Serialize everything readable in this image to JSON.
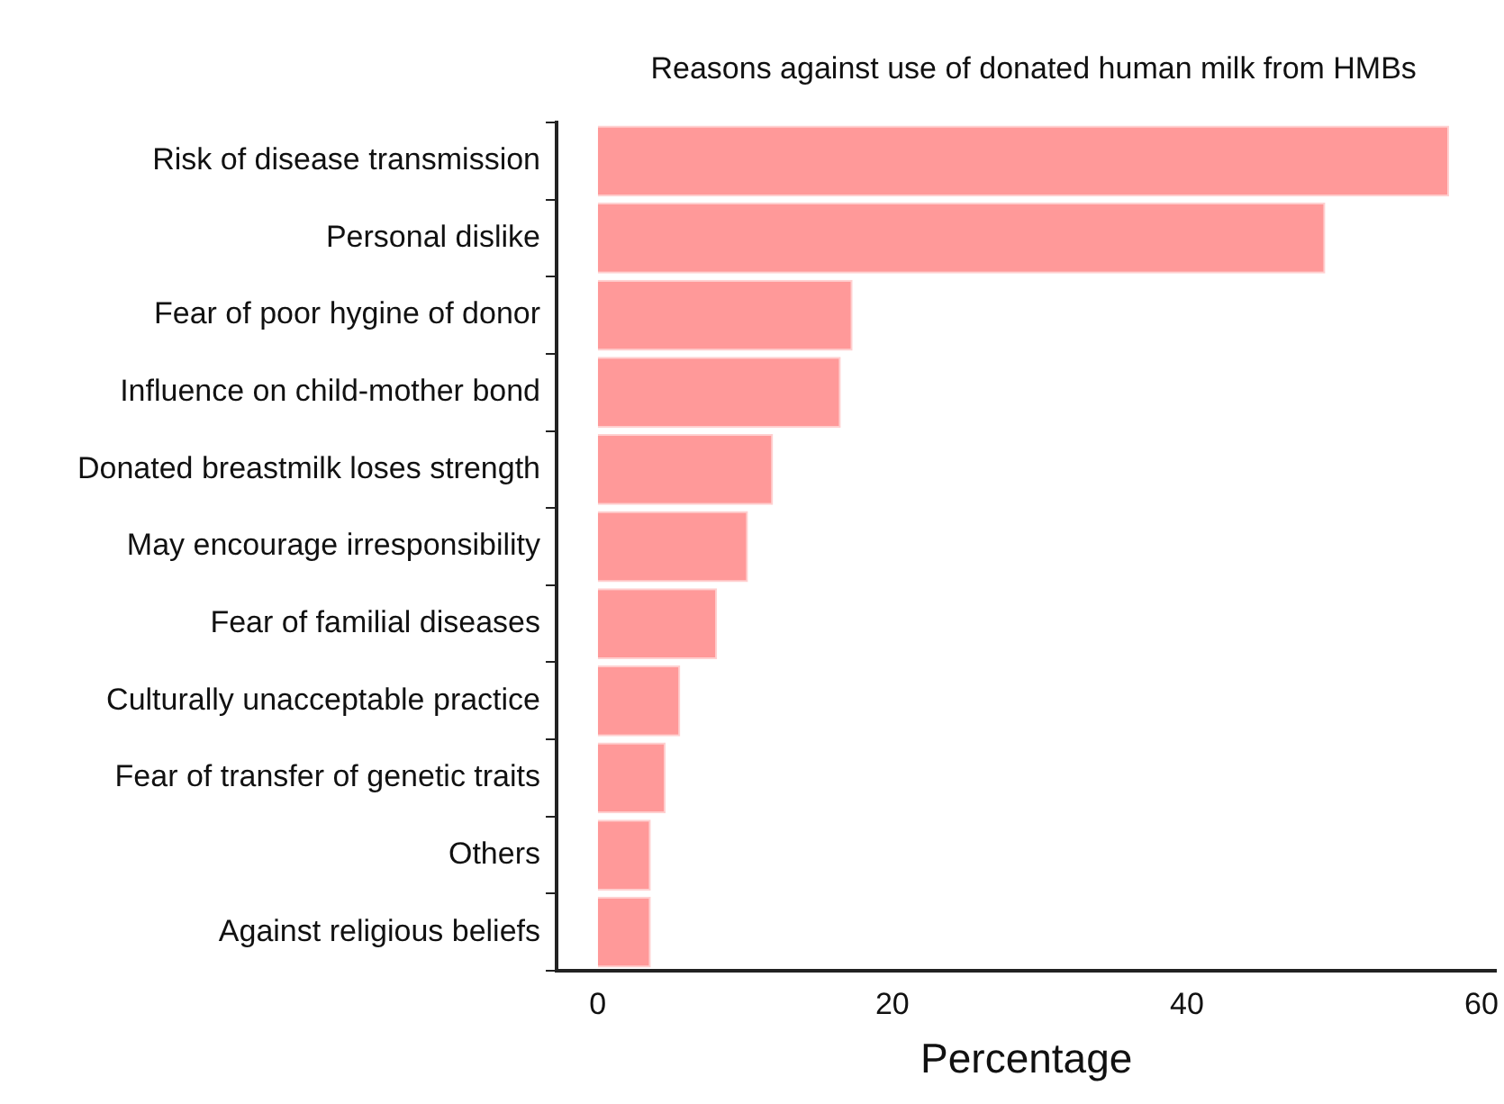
{
  "chart_data": {
    "type": "bar",
    "orientation": "horizontal",
    "title": "Reasons against use of donated human milk from HMBs",
    "xlabel": "Percentage",
    "categories": [
      "Risk of disease transmission",
      "Personal dislike",
      "Fear of poor hygine of donor",
      "Influence on child-mother bond",
      "Donated breastmilk loses strength",
      "May encourage irresponsibility",
      "Fear of familial diseases",
      "Culturally unacceptable practice",
      "Fear of transfer of genetic traits",
      "Others",
      "Against religious beliefs"
    ],
    "values": [
      57.8,
      49.4,
      17.3,
      16.5,
      11.9,
      10.2,
      8.1,
      5.6,
      4.6,
      3.6,
      3.6
    ],
    "color": "#ff9999",
    "xlim": [
      -2.8,
      61
    ],
    "xticks": [
      0,
      20,
      40,
      60
    ],
    "grid": false,
    "legend": false
  }
}
